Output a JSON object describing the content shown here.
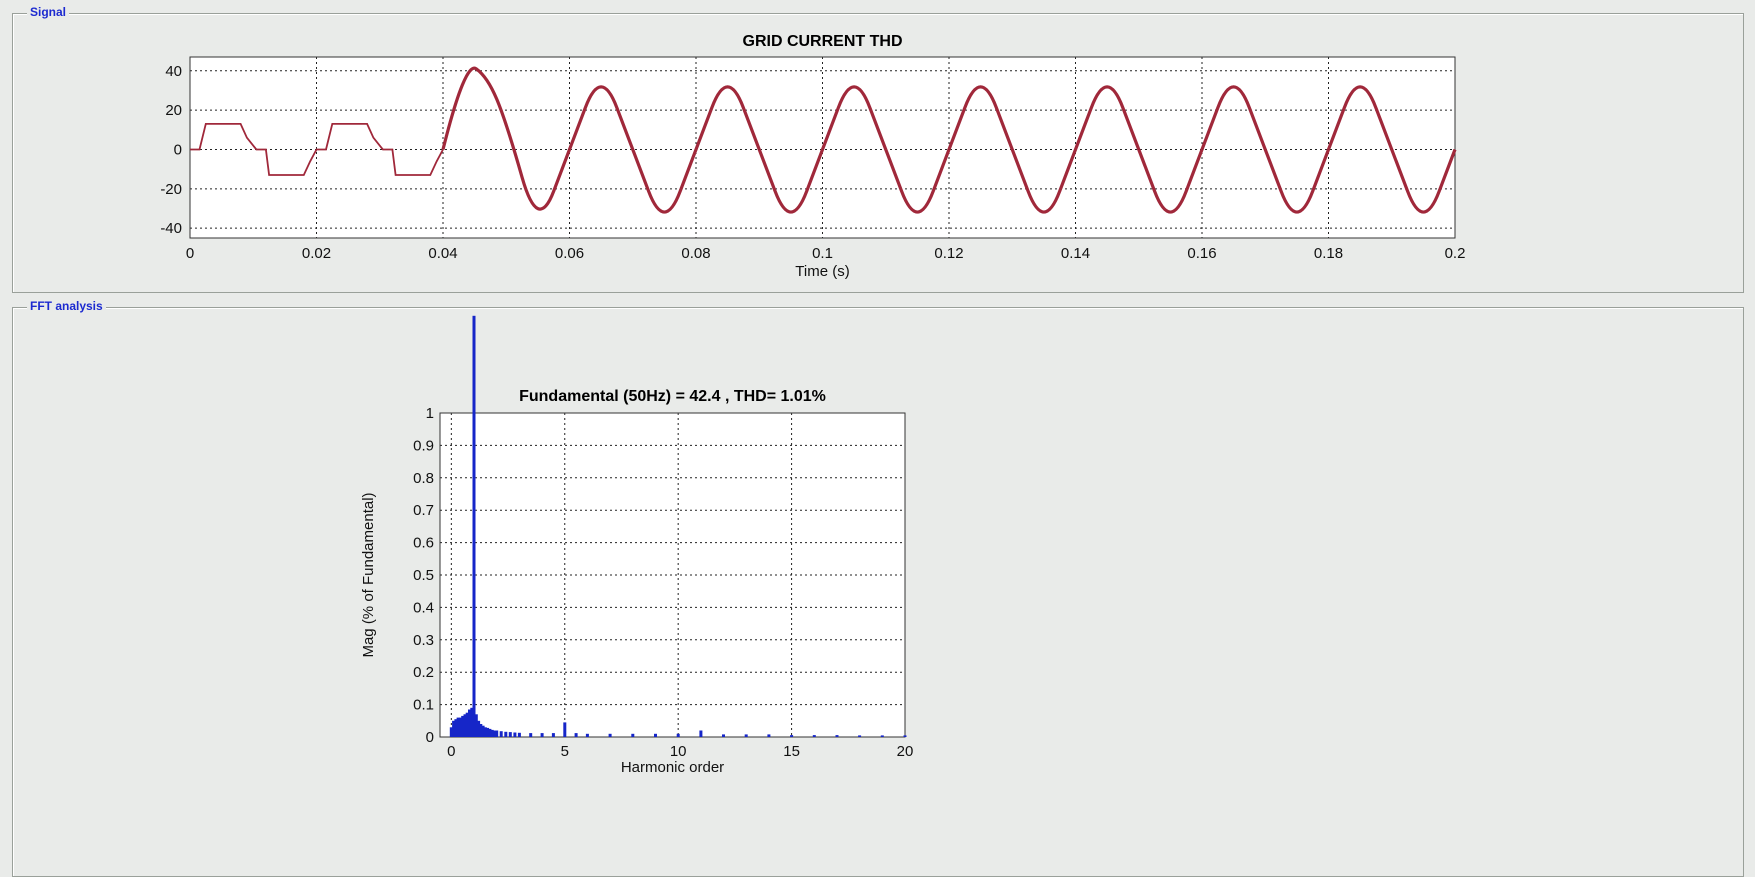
{
  "panels": {
    "signal_legend": "Signal",
    "fft_legend": "FFT analysis"
  },
  "chart_data": [
    {
      "type": "line",
      "title": "GRID CURRENT THD",
      "xlabel": "Time (s)",
      "ylabel": "",
      "xlim": [
        0,
        0.2
      ],
      "ylim": [
        -45,
        47
      ],
      "xticks": [
        "0",
        "0.02",
        "0.04",
        "0.06",
        "0.08",
        "0.1",
        "0.12",
        "0.14",
        "0.16",
        "0.18",
        "0.2"
      ],
      "yticks": [
        "-40",
        "-20",
        "0",
        "20",
        "40"
      ],
      "grid": true,
      "line_color": "#a0283a",
      "series": [
        {
          "segments": [
            {
              "x": [
                0,
                0.0015,
                0.0025,
                0.008,
                0.009,
                0.0105,
                0.012,
                0.0125,
                0.0135,
                0.018,
                0.019,
                0.02,
                0.0215,
                0.0225,
                0.028,
                0.029,
                0.0305,
                0.032,
                0.0325,
                0.0335,
                0.038,
                0.039,
                0.04
              ],
              "y": [
                0,
                0,
                13,
                13,
                6,
                0,
                0,
                -13,
                -13,
                -13,
                -6,
                0,
                0,
                13,
                13,
                6,
                0,
                0,
                -13,
                -13,
                -13,
                -6,
                0
              ]
            },
            {
              "x": [
                0.04,
                0.0435,
                0.047,
                0.05,
                0.055,
                0.06,
                0.065,
                0.07,
                0.075,
                0.08,
                0.085,
                0.09,
                0.095,
                0.1,
                0.105,
                0.11,
                0.115,
                0.12,
                0.125,
                0.13,
                0.135,
                0.14,
                0.145,
                0.15,
                0.155,
                0.16,
                0.165,
                0.17,
                0.175,
                0.18,
                0.185,
                0.19,
                0.195,
                0.2
              ],
              "y": [
                0,
                45,
                37,
                14,
                -42.4,
                0,
                42.4,
                0,
                -42.4,
                0,
                42.4,
                0,
                -42.4,
                0,
                42.4,
                0,
                -42.4,
                0,
                42.4,
                0,
                -42.4,
                0,
                42.4,
                0,
                -42.4,
                0,
                42.4,
                0,
                -42.4,
                0,
                42.4,
                0,
                -42.4,
                0
              ]
            }
          ]
        }
      ]
    },
    {
      "type": "bar",
      "title": "Fundamental (50Hz) = 42.4 , THD= 1.01%",
      "xlabel": "Harmonic order",
      "ylabel": "Mag (% of Fundamental)",
      "xlim": [
        -0.5,
        20
      ],
      "ylim": [
        0,
        1
      ],
      "xticks": [
        "0",
        "5",
        "10",
        "15",
        "20"
      ],
      "yticks": [
        "0",
        "0.1",
        "0.2",
        "0.3",
        "0.4",
        "0.5",
        "0.6",
        "0.7",
        "0.8",
        "0.9",
        "1"
      ],
      "grid": true,
      "bar_color": "#1626c8",
      "harmonics": [
        0,
        0.1,
        0.2,
        0.3,
        0.4,
        0.5,
        0.6,
        0.7,
        0.8,
        0.9,
        1.0,
        1.1,
        1.2,
        1.3,
        1.4,
        1.5,
        1.6,
        1.7,
        1.8,
        1.9,
        2.0,
        2.2,
        2.4,
        2.6,
        2.8,
        3.0,
        3.5,
        4.0,
        4.5,
        5.0,
        5.5,
        6.0,
        7.0,
        8.0,
        9.0,
        10.0,
        11.0,
        12.0,
        13.0,
        14.0,
        15.0,
        16.0,
        17.0,
        18.0,
        19.0,
        20.0
      ],
      "magnitudes": [
        0.03,
        0.05,
        0.055,
        0.06,
        0.06,
        0.065,
        0.07,
        0.075,
        0.085,
        0.09,
        1.3,
        0.07,
        0.05,
        0.04,
        0.035,
        0.03,
        0.028,
        0.025,
        0.022,
        0.02,
        0.02,
        0.018,
        0.016,
        0.015,
        0.014,
        0.013,
        0.012,
        0.012,
        0.012,
        0.045,
        0.012,
        0.01,
        0.01,
        0.01,
        0.01,
        0.01,
        0.02,
        0.008,
        0.008,
        0.008,
        0.006,
        0.006,
        0.006,
        0.005,
        0.005,
        0.005
      ]
    }
  ]
}
